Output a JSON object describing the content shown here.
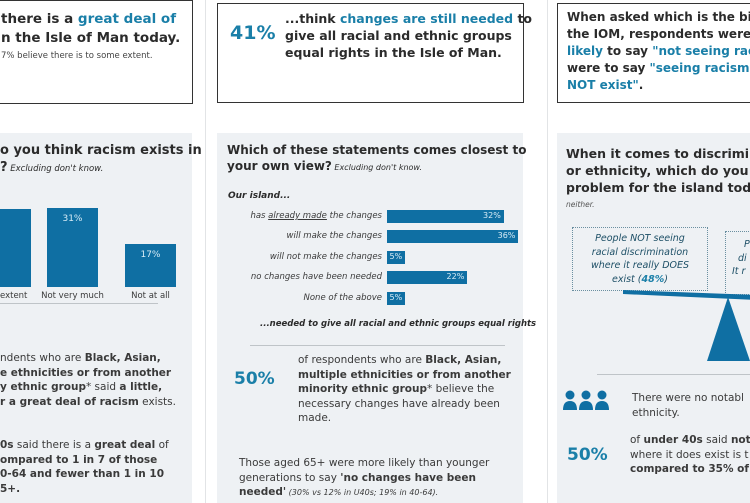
{
  "colors": {
    "accent": "#1a7fa8",
    "bar": "#0f6fa3",
    "panel": "#eef1f4"
  },
  "col1": {
    "top_box": {
      "line1_a": "there is a ",
      "line1_b": "great deal of",
      "line2": "n the Isle of Man today.",
      "line3": "7% believe there is to some extent."
    },
    "question": {
      "line1": "o you think racism exists in",
      "line2_a": "?",
      "line2_b": " Excluding don't know."
    },
    "chart_data": {
      "type": "bar",
      "categories": [
        "...extent",
        "Not very much",
        "Not at all"
      ],
      "values": [
        null,
        31,
        17
      ],
      "value_labels": [
        "%",
        "31%",
        "17%"
      ],
      "title": "...do you think racism exists in...? Excluding don't know."
    },
    "para1": {
      "l1_a": "ndents who are ",
      "l1_b": "Black, Asian,",
      "l2": "e ethnicities or from another",
      "l3_a": "y ethnic group",
      "l3_b": "* said ",
      "l3_c": "a little,",
      "l4_a": "r a great deal of racism",
      "l4_b": " exists."
    },
    "para2": {
      "l1_a": "0s",
      "l1_b": " said there is a ",
      "l1_c": "great deal",
      "l1_d": " of",
      "l2": "ompared to 1 in 7 of those",
      "l3": "0-64 and fewer than 1 in 10",
      "l4": "5+."
    }
  },
  "col2": {
    "top_box": {
      "pct": "41%",
      "l1_a": "...think ",
      "l1_b": "changes are still needed",
      "l1_c": " to",
      "l2": "give all racial and ethnic groups",
      "l3": "equal rights in the Isle of Man."
    },
    "question": {
      "line1": "Which of these statements comes closest to",
      "line2_a": "your own view?",
      "line2_b": " Excluding don't know."
    },
    "our_island": "Our island...",
    "chart_data": {
      "type": "bar",
      "orientation": "horizontal",
      "categories": [
        "has already made the changes",
        "will make the changes",
        "will not make the changes",
        "no changes have been needed",
        "None of the above"
      ],
      "values": [
        32,
        36,
        5,
        22,
        5
      ],
      "value_labels": [
        "32%",
        "36%",
        "5%",
        "22%",
        "5%"
      ],
      "footer": "...needed to give all racial and ethnic groups equal rights"
    },
    "label_parts": {
      "has": "has ",
      "already_made": "already made",
      "the_changes": " the changes"
    },
    "stat": {
      "pct": "50%",
      "l1_a": "of respondents who are ",
      "l1_b": "Black, Asian,",
      "l2": "multiple ethnicities or from another",
      "l3_a": "minority ethnic group",
      "l3_b": "* believe the",
      "l4": "necessary changes have already been",
      "l5": "made."
    },
    "note": {
      "l1": "Those aged 65+ were more likely than younger",
      "l2_a": "generations to say ",
      "l2_b": "'no changes have been",
      "l3_a": "needed'",
      "l3_b": " (30% vs 12% in U40s; 19% in 40-64)."
    }
  },
  "col3": {
    "top_box": {
      "l1": "When asked which is the big",
      "l2": "the IOM, respondents were",
      "l3_a": "likely",
      "l3_b": " to say ",
      "l3_c": "\"not seeing rac",
      "l4_a": "were to say ",
      "l4_b": "\"seeing racism w",
      "l5_a": "NOT exist\"",
      "l5_b": "."
    },
    "question": {
      "l1": "When it comes to discriminat",
      "l2": "or ethnicity, which do you th",
      "l3": "problem for the island today",
      "l4": "neither."
    },
    "scale_left": {
      "l1": "People NOT seeing",
      "l2": "racial discrimination",
      "l3": "where it really DOES",
      "l4_a": "exist (",
      "l4_b": "48%",
      "l4_c": ")"
    },
    "scale_right": {
      "l1": "P",
      "l2": "di",
      "l3": "It r"
    },
    "people_text": {
      "l1": "There were no notabl",
      "l2": "ethnicity."
    },
    "stat": {
      "pct": "50%",
      "l1_a": "of ",
      "l1_b": "under 40s",
      "l1_c": " said ",
      "l1_d": "not",
      "l2": "where it does exist is t",
      "l3": "compared to 35% of"
    }
  }
}
